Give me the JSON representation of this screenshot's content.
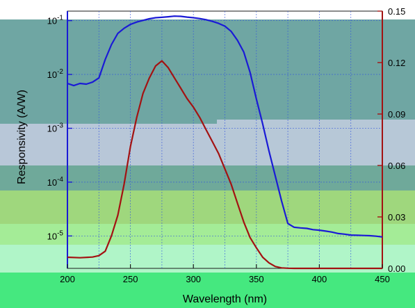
{
  "chart_data": {
    "type": "line",
    "title": "",
    "xlabel": "Wavelength (nm)",
    "ylabel_left": "Responsivity (A/W)",
    "ylabel_right": "",
    "xlim": [
      200,
      450
    ],
    "ylim_left": [
      2.5e-06,
      0.15
    ],
    "yscale_left": "log",
    "ylim_right": [
      0,
      0.15
    ],
    "xticks": [
      200,
      250,
      300,
      350,
      400,
      450
    ],
    "yticks_left": [
      {
        "value": 0.1,
        "label": "10-1"
      },
      {
        "value": 0.01,
        "label": "10-2"
      },
      {
        "value": 0.001,
        "label": "10-3"
      },
      {
        "value": 0.0001,
        "label": "10-4"
      },
      {
        "value": 1e-05,
        "label": "10-5"
      }
    ],
    "yticks_right": [
      {
        "value": 0.15,
        "label": "0.15"
      },
      {
        "value": 0.12,
        "label": "0.12"
      },
      {
        "value": 0.09,
        "label": "0.09"
      },
      {
        "value": 0.06,
        "label": "0.06"
      },
      {
        "value": 0.03,
        "label": "0.03"
      },
      {
        "value": 0.0,
        "label": "0.00"
      }
    ],
    "grid": true,
    "series": [
      {
        "axis": "left",
        "color": "#1a1ad6",
        "x": [
          200,
          205,
          210,
          215,
          220,
          225,
          230,
          235,
          240,
          245,
          250,
          255,
          260,
          265,
          270,
          275,
          280,
          285,
          290,
          295,
          300,
          305,
          310,
          315,
          320,
          325,
          330,
          335,
          340,
          345,
          350,
          355,
          360,
          365,
          370,
          375,
          380,
          385,
          390,
          395,
          400,
          405,
          410,
          415,
          420,
          425,
          430,
          435,
          440,
          445,
          450
        ],
        "y": [
          0.0068,
          0.0062,
          0.0068,
          0.0066,
          0.0072,
          0.0086,
          0.019,
          0.036,
          0.058,
          0.072,
          0.085,
          0.094,
          0.101,
          0.108,
          0.113,
          0.115,
          0.118,
          0.121,
          0.12,
          0.116,
          0.113,
          0.109,
          0.104,
          0.097,
          0.089,
          0.079,
          0.063,
          0.043,
          0.026,
          0.011,
          0.0035,
          0.0012,
          0.00038,
          0.00013,
          4.5e-05,
          1.7e-05,
          1.45e-05,
          1.41e-05,
          1.38e-05,
          1.31e-05,
          1.28e-05,
          1.23e-05,
          1.18e-05,
          1.11e-05,
          1.08e-05,
          1.04e-05,
          1.03e-05,
          1.02e-05,
          1.01e-05,
          9.9e-06,
          9.6e-06
        ]
      },
      {
        "axis": "right",
        "color": "#a31212",
        "x": [
          200,
          210,
          220,
          225,
          230,
          235,
          240,
          245,
          250,
          255,
          260,
          265,
          270,
          275,
          280,
          285,
          290,
          295,
          300,
          305,
          310,
          315,
          320,
          325,
          330,
          335,
          340,
          345,
          350,
          355,
          360,
          365,
          370,
          375,
          380,
          385,
          390,
          395,
          400,
          450
        ],
        "y": [
          0.0065,
          0.0062,
          0.0066,
          0.0074,
          0.01,
          0.019,
          0.031,
          0.049,
          0.071,
          0.088,
          0.102,
          0.111,
          0.118,
          0.121,
          0.117,
          0.111,
          0.105,
          0.099,
          0.094,
          0.088,
          0.081,
          0.074,
          0.067,
          0.058,
          0.049,
          0.038,
          0.027,
          0.018,
          0.012,
          0.0065,
          0.0032,
          0.0011,
          0.0003,
          0.0001,
          0.0,
          0.0,
          0.0,
          0.0,
          0.0,
          0.0
        ]
      }
    ]
  }
}
